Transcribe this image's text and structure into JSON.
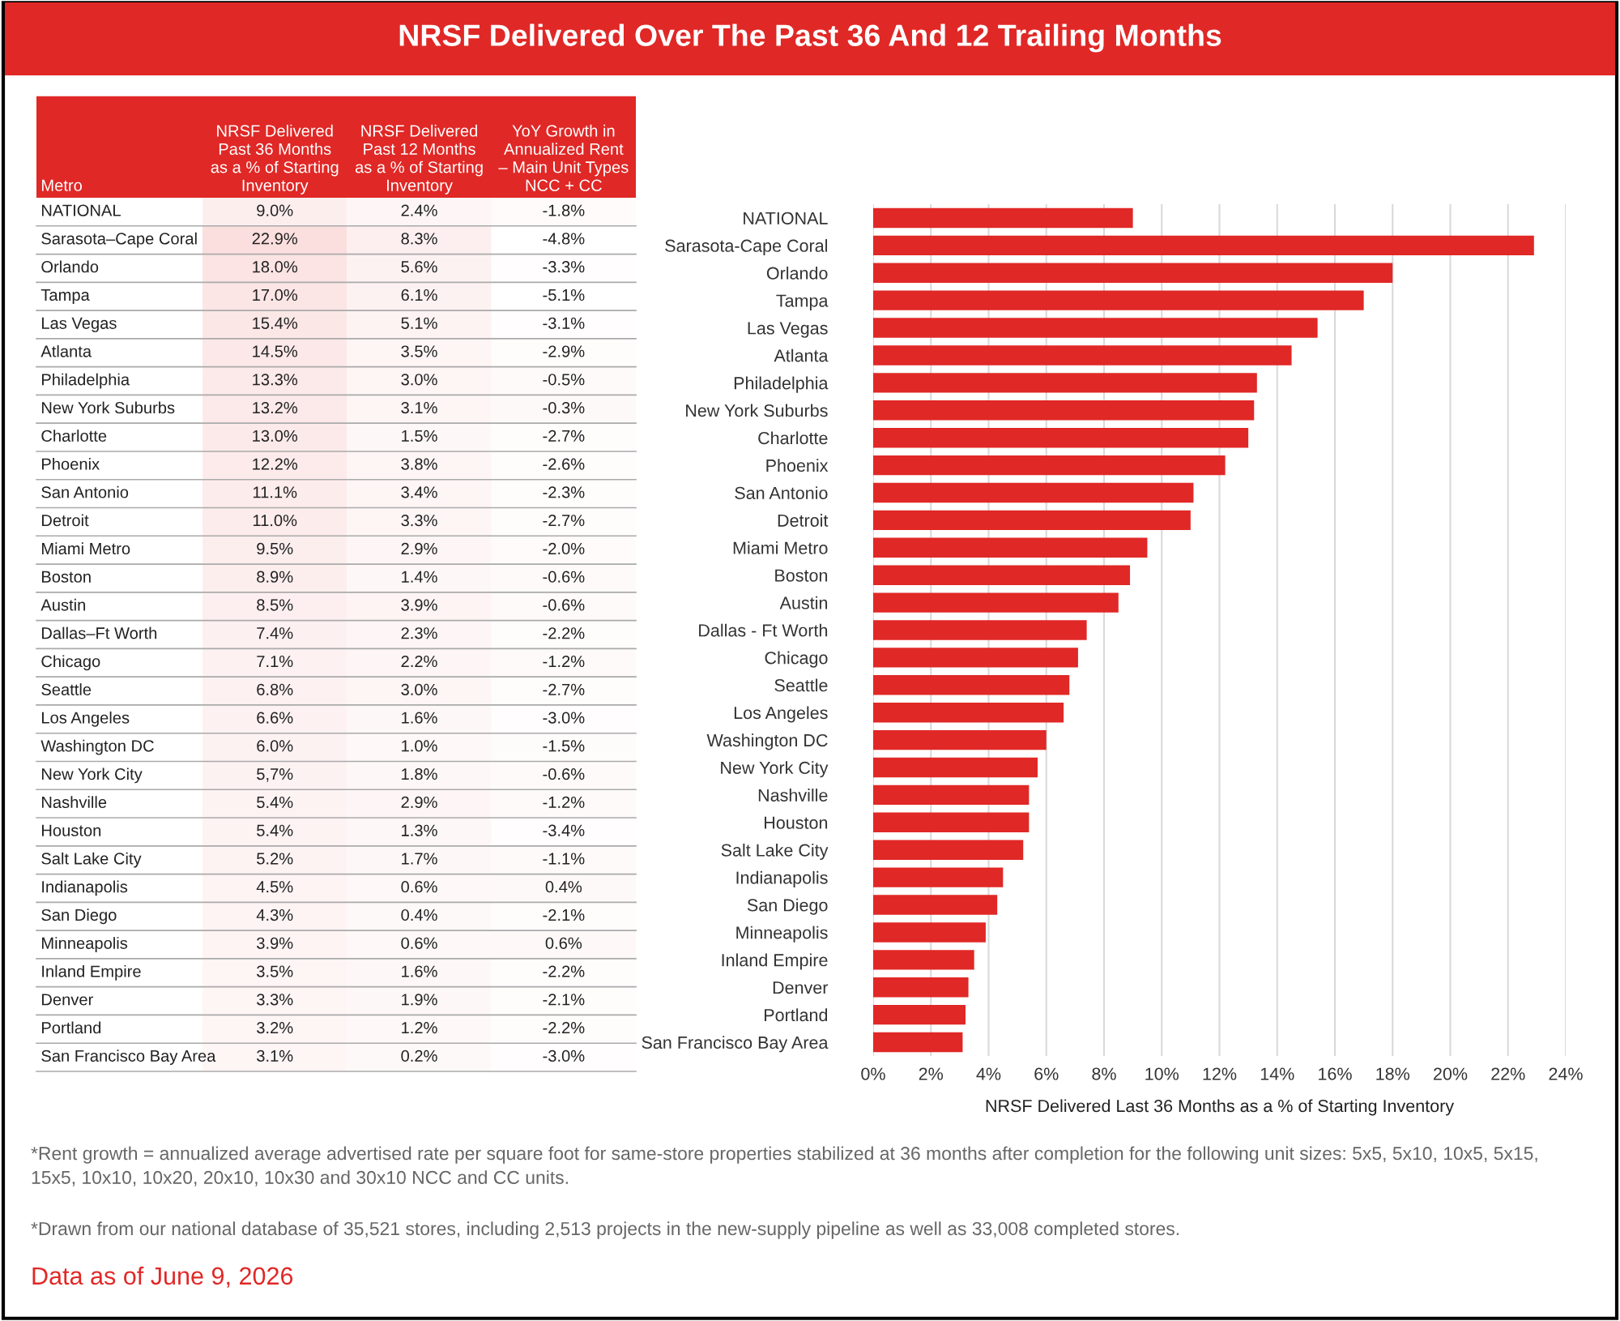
{
  "chart_data": [
    {
      "type": "heatmap",
      "title": "NRSF Delivered Over The Past 36 And 12 Trailing Months",
      "ylabel": "Metro",
      "categories": [
        "NRSF Delivered\nPast 36 Months\nas a % of Starting\nInventory",
        "NRSF Delivered\nPast 12 Months\nas a % of Starting\nInventory",
        "YoY Growth in\nAnnualized Rent\n– Main Unit Types\nNCC + CC"
      ],
      "y_categories": [
        "NATIONAL",
        "Sarasota–Cape Coral",
        "Orlando",
        "Tampa",
        "Las Vegas",
        "Atlanta",
        "Philadelphia",
        "New York Suburbs",
        "Charlotte",
        "Phoenix",
        "San Antonio",
        "Detroit",
        "Miami Metro",
        "Boston",
        "Austin",
        "Dallas–Ft Worth",
        "Chicago",
        "Seattle",
        "Los Angeles",
        "Washington DC",
        "New York City",
        "Nashville",
        "Houston",
        "Salt Lake City",
        "Indianapolis",
        "San Diego",
        "Minneapolis",
        "Inland Empire",
        "Denver",
        "Portland",
        "San Francisco Bay Area"
      ],
      "cells": [
        [
          9.0,
          2.4,
          -1.8
        ],
        [
          22.9,
          8.3,
          -4.8
        ],
        [
          18.0,
          5.6,
          -3.3
        ],
        [
          17.0,
          6.1,
          -5.1
        ],
        [
          15.4,
          5.1,
          -3.1
        ],
        [
          14.5,
          3.5,
          -2.9
        ],
        [
          13.3,
          3.0,
          -0.5
        ],
        [
          13.2,
          3.1,
          -0.3
        ],
        [
          13.0,
          1.5,
          -2.7
        ],
        [
          12.2,
          3.8,
          -2.6
        ],
        [
          11.1,
          3.4,
          -2.3
        ],
        [
          11.0,
          3.3,
          -2.7
        ],
        [
          9.5,
          2.9,
          -2.0
        ],
        [
          8.9,
          1.4,
          -0.6
        ],
        [
          8.5,
          3.9,
          -0.6
        ],
        [
          7.4,
          2.3,
          -2.2
        ],
        [
          7.1,
          2.2,
          -1.2
        ],
        [
          6.8,
          3.0,
          -2.7
        ],
        [
          6.6,
          1.6,
          -3.0
        ],
        [
          6.0,
          1.0,
          -1.5
        ],
        [
          5.7,
          1.8,
          -0.6
        ],
        [
          5.4,
          2.9,
          -1.2
        ],
        [
          5.4,
          1.3,
          -3.4
        ],
        [
          5.2,
          1.7,
          -1.1
        ],
        [
          4.5,
          0.6,
          0.4
        ],
        [
          4.3,
          0.4,
          -2.1
        ],
        [
          3.9,
          0.6,
          0.6
        ],
        [
          3.5,
          1.6,
          -2.2
        ],
        [
          3.3,
          1.9,
          -2.1
        ],
        [
          3.2,
          1.2,
          -2.2
        ],
        [
          3.1,
          0.2,
          -3.0
        ]
      ],
      "cell_labels": [
        [
          "9.0%",
          "2.4%",
          "-1.8%"
        ],
        [
          "22.9%",
          "8.3%",
          "-4.8%"
        ],
        [
          "18.0%",
          "5.6%",
          "-3.3%"
        ],
        [
          "17.0%",
          "6.1%",
          "-5.1%"
        ],
        [
          "15.4%",
          "5.1%",
          "-3.1%"
        ],
        [
          "14.5%",
          "3.5%",
          "-2.9%"
        ],
        [
          "13.3%",
          "3.0%",
          "-0.5%"
        ],
        [
          "13.2%",
          "3.1%",
          "-0.3%"
        ],
        [
          "13.0%",
          "1.5%",
          "-2.7%"
        ],
        [
          "12.2%",
          "3.8%",
          "-2.6%"
        ],
        [
          "11.1%",
          "3.4%",
          "-2.3%"
        ],
        [
          "11.0%",
          "3.3%",
          "-2.7%"
        ],
        [
          "9.5%",
          "2.9%",
          "-2.0%"
        ],
        [
          "8.9%",
          "1.4%",
          "-0.6%"
        ],
        [
          "8.5%",
          "3.9%",
          "-0.6%"
        ],
        [
          "7.4%",
          "2.3%",
          "-2.2%"
        ],
        [
          "7.1%",
          "2.2%",
          "-1.2%"
        ],
        [
          "6.8%",
          "3.0%",
          "-2.7%"
        ],
        [
          "6.6%",
          "1.6%",
          "-3.0%"
        ],
        [
          "6.0%",
          "1.0%",
          "-1.5%"
        ],
        [
          "5,7%",
          "1.8%",
          "-0.6%"
        ],
        [
          "5.4%",
          "2.9%",
          "-1.2%"
        ],
        [
          "5.4%",
          "1.3%",
          "-3.4%"
        ],
        [
          "5.2%",
          "1.7%",
          "-1.1%"
        ],
        [
          "4.5%",
          "0.6%",
          "0.4%"
        ],
        [
          "4.3%",
          "0.4%",
          "-2.1%"
        ],
        [
          "3.9%",
          "0.6%",
          "0.6%"
        ],
        [
          "3.5%",
          "1.6%",
          "-2.2%"
        ],
        [
          "3.3%",
          "1.9%",
          "-2.1%"
        ],
        [
          "3.2%",
          "1.2%",
          "-2.2%"
        ],
        [
          "3.1%",
          "0.2%",
          "-3.0%"
        ]
      ]
    },
    {
      "type": "bar",
      "orientation": "horizontal",
      "color": "#e02826",
      "grid": "x",
      "xlabel": "NRSF Delivered Last 36 Months as a % of Starting Inventory",
      "categories": [
        "NATIONAL",
        "Sarasota-Cape Coral",
        "Orlando",
        "Tampa",
        "Las Vegas",
        "Atlanta",
        "Philadelphia",
        "New York Suburbs",
        "Charlotte",
        "Phoenix",
        "San Antonio",
        "Detroit",
        "Miami Metro",
        "Boston",
        "Austin",
        "Dallas - Ft Worth",
        "Chicago",
        "Seattle",
        "Los Angeles",
        "Washington DC",
        "New York City",
        "Nashville",
        "Houston",
        "Salt Lake City",
        "Indianapolis",
        "San Diego",
        "Minneapolis",
        "Inland Empire",
        "Denver",
        "Portland",
        "San Francisco Bay Area"
      ],
      "values": [
        9.0,
        22.9,
        18.0,
        17.0,
        15.4,
        14.5,
        13.3,
        13.2,
        13.0,
        12.2,
        11.1,
        11.0,
        9.5,
        8.9,
        8.5,
        7.4,
        7.1,
        6.8,
        6.6,
        6.0,
        5.7,
        5.4,
        5.4,
        5.2,
        4.5,
        4.3,
        3.9,
        3.5,
        3.3,
        3.2,
        3.1
      ],
      "xlim": [
        0,
        24
      ],
      "xticks": [
        {
          "value": 0,
          "label": "0%"
        },
        {
          "value": 2,
          "label": "2%"
        },
        {
          "value": 4,
          "label": "4%"
        },
        {
          "value": 6,
          "label": "6%"
        },
        {
          "value": 8,
          "label": "8%"
        },
        {
          "value": 10,
          "label": "10%"
        },
        {
          "value": 12,
          "label": "12%"
        },
        {
          "value": 14,
          "label": "14%"
        },
        {
          "value": 16,
          "label": "16%"
        },
        {
          "value": 18,
          "label": "18%"
        },
        {
          "value": 20,
          "label": "20%"
        },
        {
          "value": 22,
          "label": "22%"
        },
        {
          "value": 24,
          "label": "24%"
        }
      ],
      "annotations": [
        "*Rent growth = annualized average advertised rate per square foot for same-store properties stabilized at 36 months after completion for the following unit sizes: 5x5, 5x10, 10x5, 5x15, 15x5, 10x10, 10x20, 20x10, 10x30 and 30x10 NCC and CC units.",
        "*Drawn from our national database of 35,521 stores, including 2,513 projects in the new-supply pipeline as well as 33,008 completed stores.",
        "Data as of June 9, 2026"
      ]
    }
  ]
}
